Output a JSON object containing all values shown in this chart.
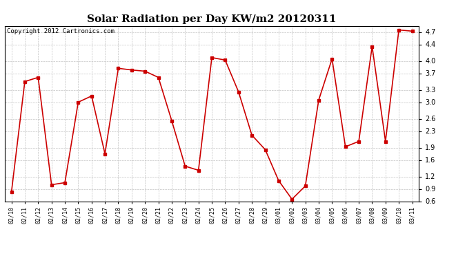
{
  "title": "Solar Radiation per Day KW/m2 20120311",
  "copyright_text": "Copyright 2012 Cartronics.com",
  "dates": [
    "02/10",
    "02/11",
    "02/12",
    "02/13",
    "02/14",
    "02/15",
    "02/16",
    "02/17",
    "02/18",
    "02/19",
    "02/20",
    "02/21",
    "02/22",
    "02/23",
    "02/24",
    "02/25",
    "02/26",
    "02/27",
    "02/28",
    "02/29",
    "03/01",
    "03/02",
    "03/03",
    "03/04",
    "03/05",
    "03/06",
    "03/07",
    "03/08",
    "03/09",
    "03/10",
    "03/11"
  ],
  "values": [
    0.82,
    3.5,
    3.6,
    1.0,
    1.05,
    3.0,
    3.15,
    1.75,
    3.82,
    3.78,
    3.75,
    3.6,
    2.55,
    1.45,
    1.35,
    4.08,
    4.02,
    3.25,
    2.2,
    1.85,
    1.1,
    0.65,
    0.97,
    3.05,
    4.05,
    1.92,
    2.05,
    4.35,
    2.05,
    4.75,
    4.72
  ],
  "line_color": "#cc0000",
  "marker": "s",
  "marker_size": 2.5,
  "line_width": 1.2,
  "ylim": [
    0.6,
    4.85
  ],
  "yticks": [
    0.6,
    0.9,
    1.2,
    1.6,
    1.9,
    2.3,
    2.6,
    3.0,
    3.3,
    3.7,
    4.0,
    4.4,
    4.7
  ],
  "background_color": "#ffffff",
  "grid_color": "#bbbbbb",
  "title_fontsize": 11,
  "copyright_fontsize": 6.5,
  "tick_fontsize": 6,
  "ytick_fontsize": 7
}
